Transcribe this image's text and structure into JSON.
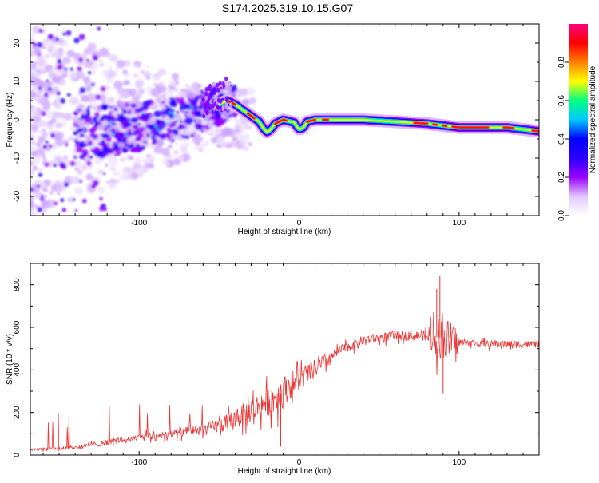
{
  "title": "S174.2025.319.10.15.G07",
  "chart_data": [
    {
      "type": "heatmap",
      "xlabel": "Height of straight line (km)",
      "ylabel": "Frequency (Hz)",
      "xlim": [
        -168,
        150
      ],
      "ylim": [
        -25,
        25
      ],
      "xticks": [
        -100,
        0,
        100
      ],
      "yticks": [
        -20,
        -10,
        0,
        10,
        20
      ],
      "colorbar": {
        "label": "Normalized spectral amplitude",
        "ticks": [
          "0.0",
          "0.2",
          "0.4",
          "0.6",
          "0.8"
        ],
        "tick_values": [
          0,
          0.2,
          0.4,
          0.6,
          0.8
        ],
        "range": [
          0,
          1
        ],
        "colors": [
          "#ffffff",
          "#e0c8ff",
          "#9900ff",
          "#2a00ff",
          "#0000ff",
          "#00c8ff",
          "#00ff80",
          "#ffff00",
          "#ff8000",
          "#ff0000",
          "#ff0080"
        ]
      },
      "ridge": {
        "description_points": [
          {
            "x": -130,
            "y": -3
          },
          {
            "x": -110,
            "y": -2
          },
          {
            "x": -90,
            "y": -1
          },
          {
            "x": -70,
            "y": 1
          },
          {
            "x": -55,
            "y": 3
          },
          {
            "x": -45,
            "y": 5
          },
          {
            "x": -40,
            "y": 4
          },
          {
            "x": -30,
            "y": 1
          },
          {
            "x": -20,
            "y": -2
          },
          {
            "x": -10,
            "y": 0
          },
          {
            "x": 0,
            "y": -1
          },
          {
            "x": 10,
            "y": 0
          },
          {
            "x": 40,
            "y": 0
          },
          {
            "x": 80,
            "y": -1
          },
          {
            "x": 100,
            "y": -2
          },
          {
            "x": 130,
            "y": -2
          },
          {
            "x": 150,
            "y": -3
          }
        ]
      }
    },
    {
      "type": "line",
      "xlabel": "Height of straight line (km)",
      "ylabel": "SNR (10 * v/v)",
      "xlim": [
        -168,
        150
      ],
      "ylim": [
        0,
        900
      ],
      "xticks": [
        -100,
        0,
        100
      ],
      "yticks": [
        0,
        200,
        400,
        600,
        800
      ],
      "color": "#ee3333",
      "trend": [
        {
          "x": -168,
          "y": 25
        },
        {
          "x": -140,
          "y": 35
        },
        {
          "x": -120,
          "y": 60
        },
        {
          "x": -100,
          "y": 80
        },
        {
          "x": -80,
          "y": 100
        },
        {
          "x": -60,
          "y": 120
        },
        {
          "x": -45,
          "y": 150
        },
        {
          "x": -35,
          "y": 190
        },
        {
          "x": -25,
          "y": 230
        },
        {
          "x": -15,
          "y": 270
        },
        {
          "x": -5,
          "y": 330
        },
        {
          "x": 5,
          "y": 380
        },
        {
          "x": 15,
          "y": 430
        },
        {
          "x": 25,
          "y": 490
        },
        {
          "x": 40,
          "y": 540
        },
        {
          "x": 60,
          "y": 560
        },
        {
          "x": 80,
          "y": 560
        },
        {
          "x": 90,
          "y": 550
        },
        {
          "x": 100,
          "y": 530
        },
        {
          "x": 120,
          "y": 520
        },
        {
          "x": 150,
          "y": 520
        }
      ],
      "spikes": [
        {
          "x": -12,
          "y": 890
        },
        {
          "x": -11.5,
          "y": 40
        },
        {
          "x": 88,
          "y": 840
        },
        {
          "x": 90,
          "y": 290
        },
        {
          "x": 86,
          "y": 780
        }
      ]
    }
  ]
}
